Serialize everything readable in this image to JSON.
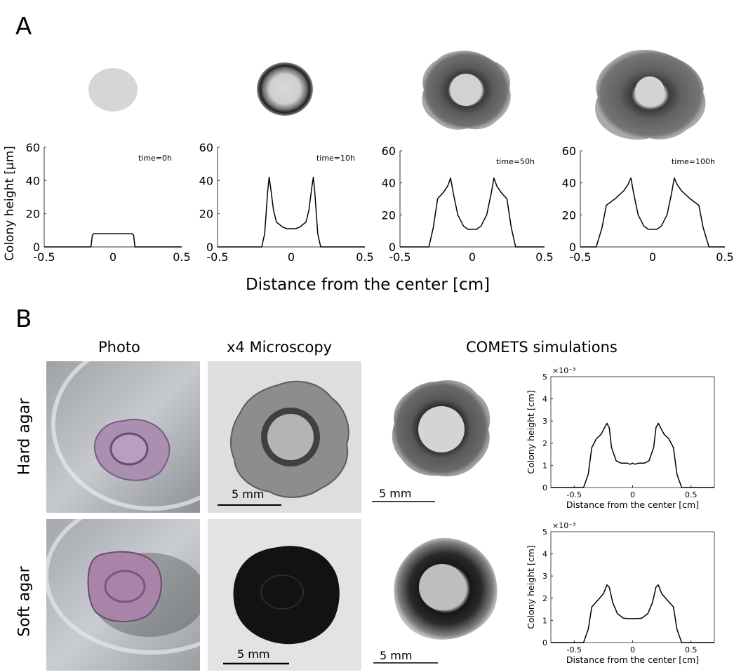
{
  "panel_a": {
    "letter": "A",
    "ylabel": "Colony height [μm]",
    "xlabel": "Distance from the center [cm]"
  },
  "panel_b": {
    "letter": "B",
    "col_titles": {
      "photo": "Photo",
      "microscopy": "x4 Microscopy",
      "simulations": "COMETS simulations"
    },
    "row_labels": {
      "hard": "Hard agar",
      "soft": "Soft agar"
    },
    "scale_bar": "5 mm",
    "sim_xlabel": "Distance from the center [cm]",
    "sim_ylabel": "Colony height [cm]",
    "sim_exponent": "×10⁻³"
  },
  "colors": {
    "plot_line": "#000000",
    "colony_gray": "#555555"
  },
  "chart_data": [
    {
      "type": "line",
      "panel": "A",
      "title": "time=0h",
      "xlim": [
        -0.5,
        0.5
      ],
      "ylim": [
        0,
        60
      ],
      "xticks": [
        "-0.5",
        "0",
        "0.5"
      ],
      "yticks": [
        "0",
        "20",
        "40",
        "60"
      ],
      "x": [
        -0.5,
        -0.16,
        -0.15,
        -0.14,
        0,
        0.14,
        0.15,
        0.16,
        0.5
      ],
      "y": [
        0,
        0,
        7,
        8,
        8,
        8,
        7,
        0,
        0
      ]
    },
    {
      "type": "line",
      "panel": "A",
      "title": "time=10h",
      "xlim": [
        -0.5,
        0.5
      ],
      "ylim": [
        0,
        60
      ],
      "xticks": [
        "-0.5",
        "0",
        "0.5"
      ],
      "yticks": [
        "0",
        "20",
        "40",
        "60"
      ],
      "x": [
        -0.5,
        -0.2,
        -0.18,
        -0.16,
        -0.15,
        -0.14,
        -0.12,
        -0.1,
        -0.06,
        -0.03,
        0,
        0.03,
        0.06,
        0.1,
        0.12,
        0.14,
        0.15,
        0.16,
        0.18,
        0.2,
        0.5
      ],
      "y": [
        0,
        0,
        8,
        33,
        42,
        36,
        22,
        15,
        12,
        11,
        11,
        11,
        12,
        15,
        22,
        36,
        42,
        33,
        8,
        0,
        0
      ]
    },
    {
      "type": "line",
      "panel": "A",
      "title": "time=50h",
      "xlim": [
        -0.5,
        0.5
      ],
      "ylim": [
        0,
        60
      ],
      "xticks": [
        "-0.5",
        "0",
        "0.5"
      ],
      "yticks": [
        "0",
        "20",
        "40",
        "60"
      ],
      "x": [
        -0.5,
        -0.3,
        -0.27,
        -0.24,
        -0.2,
        -0.17,
        -0.15,
        -0.13,
        -0.1,
        -0.06,
        -0.03,
        0,
        0.03,
        0.06,
        0.1,
        0.13,
        0.15,
        0.17,
        0.2,
        0.24,
        0.27,
        0.3,
        0.5
      ],
      "y": [
        0,
        0,
        12,
        30,
        34,
        38,
        43,
        33,
        20,
        13,
        11,
        11,
        11,
        13,
        20,
        33,
        43,
        38,
        34,
        30,
        12,
        0,
        0
      ]
    },
    {
      "type": "line",
      "panel": "A",
      "title": "time=100h",
      "xlim": [
        -0.5,
        0.5
      ],
      "ylim": [
        0,
        60
      ],
      "xticks": [
        "-0.5",
        "0",
        "0.5"
      ],
      "yticks": [
        "0",
        "20",
        "40",
        "60"
      ],
      "x": [
        -0.5,
        -0.39,
        -0.35,
        -0.32,
        -0.26,
        -0.2,
        -0.17,
        -0.15,
        -0.13,
        -0.1,
        -0.06,
        -0.03,
        0,
        0.03,
        0.06,
        0.1,
        0.13,
        0.15,
        0.17,
        0.2,
        0.26,
        0.32,
        0.35,
        0.39,
        0.5
      ],
      "y": [
        0,
        0,
        12,
        26,
        30,
        35,
        39,
        43,
        33,
        20,
        13,
        11,
        11,
        11,
        13,
        20,
        33,
        43,
        39,
        35,
        30,
        26,
        12,
        0,
        0
      ]
    },
    {
      "type": "line",
      "panel": "B",
      "row": "Hard agar",
      "xlabel": "Distance from the center [cm]",
      "ylabel": "Colony height [cm]",
      "xlim": [
        -0.7,
        0.7
      ],
      "ylim": [
        0,
        5
      ],
      "y_scale_label": "×10⁻³",
      "xticks": [
        "-0.5",
        "0",
        "0.5"
      ],
      "yticks": [
        "0",
        "1",
        "2",
        "3",
        "4",
        "5"
      ],
      "x": [
        -0.7,
        -0.42,
        -0.38,
        -0.35,
        -0.31,
        -0.27,
        -0.22,
        -0.2,
        -0.18,
        -0.14,
        -0.1,
        -0.05,
        -0.02,
        0,
        0.02,
        0.05,
        0.1,
        0.14,
        0.18,
        0.2,
        0.22,
        0.27,
        0.31,
        0.35,
        0.38,
        0.42,
        0.7
      ],
      "y": [
        0,
        0,
        0.6,
        1.8,
        2.2,
        2.4,
        2.9,
        2.7,
        1.8,
        1.2,
        1.1,
        1.1,
        1.05,
        1.1,
        1.05,
        1.1,
        1.1,
        1.2,
        1.8,
        2.7,
        2.9,
        2.4,
        2.2,
        1.8,
        0.6,
        0,
        0
      ]
    },
    {
      "type": "line",
      "panel": "B",
      "row": "Soft agar",
      "xlabel": "Distance from the center [cm]",
      "ylabel": "Colony height [cm]",
      "xlim": [
        -0.7,
        0.7
      ],
      "ylim": [
        0,
        5
      ],
      "y_scale_label": "×10⁻³",
      "xticks": [
        "-0.5",
        "0",
        "0.5"
      ],
      "yticks": [
        "0",
        "1",
        "2",
        "3",
        "4",
        "5"
      ],
      "x": [
        -0.7,
        -0.42,
        -0.38,
        -0.35,
        -0.3,
        -0.25,
        -0.22,
        -0.2,
        -0.17,
        -0.13,
        -0.08,
        -0.04,
        0,
        0.04,
        0.08,
        0.13,
        0.17,
        0.2,
        0.22,
        0.25,
        0.3,
        0.35,
        0.38,
        0.42,
        0.7
      ],
      "y": [
        0,
        0,
        0.6,
        1.6,
        1.9,
        2.2,
        2.6,
        2.5,
        1.8,
        1.3,
        1.1,
        1.08,
        1.08,
        1.08,
        1.1,
        1.3,
        1.8,
        2.5,
        2.6,
        2.2,
        1.9,
        1.6,
        0.6,
        0,
        0
      ]
    }
  ]
}
